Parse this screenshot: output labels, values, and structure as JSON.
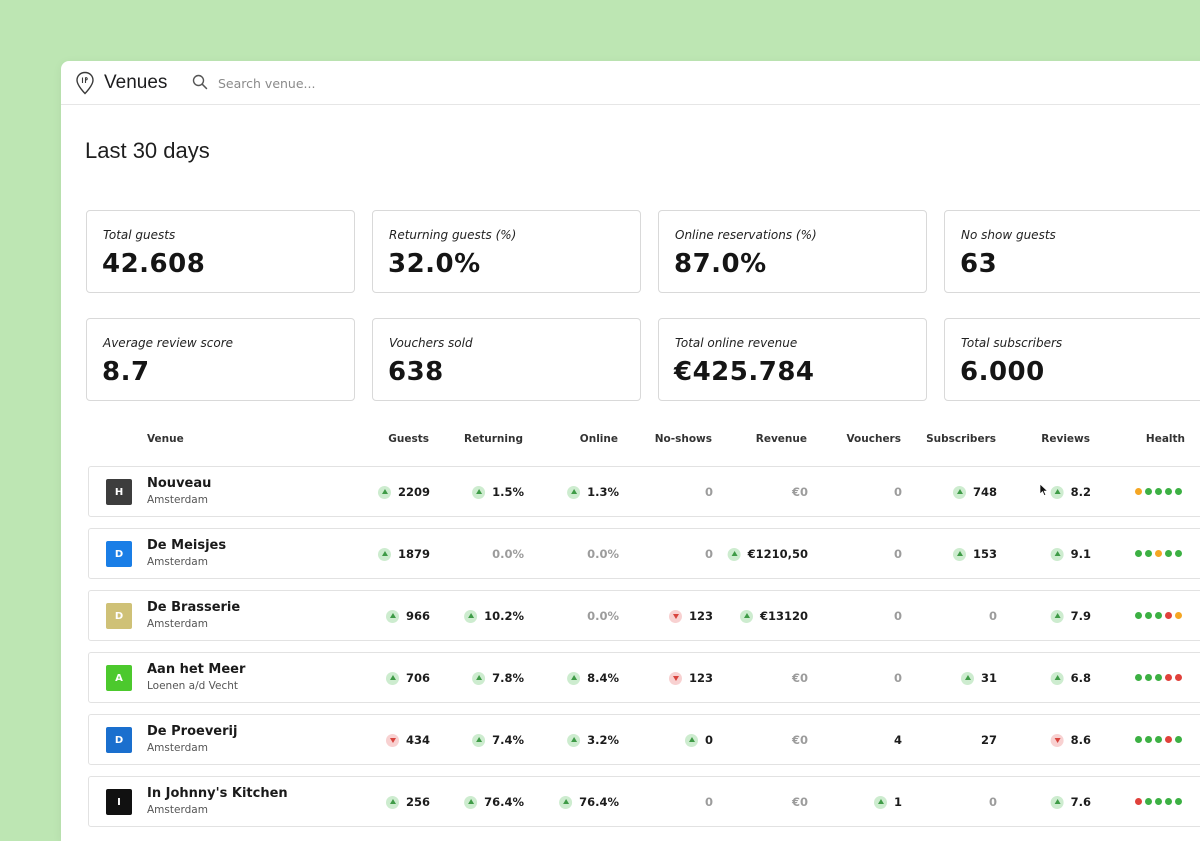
{
  "header": {
    "title": "Venues",
    "search_placeholder": "Search venue...",
    "logo_icon": "location-pin-logo-icon",
    "search_icon": "search-icon"
  },
  "page": {
    "title": "Last 30 days"
  },
  "stats": [
    {
      "label": "Total guests",
      "value": "42.608"
    },
    {
      "label": "Returning guests (%)",
      "value": "32.0%"
    },
    {
      "label": "Online reservations (%)",
      "value": "87.0%"
    },
    {
      "label": "No show guests",
      "value": "63"
    },
    {
      "label": "Average review score",
      "value": "8.7"
    },
    {
      "label": "Vouchers sold",
      "value": "638"
    },
    {
      "label": "Total online revenue",
      "value": "€425.784"
    },
    {
      "label": "Total subscribers",
      "value": "6.000"
    }
  ],
  "table": {
    "columns": [
      "Venue",
      "Guests",
      "Returning",
      "Online",
      "No-shows",
      "Revenue",
      "Vouchers",
      "Subscribers",
      "Reviews",
      "Health"
    ],
    "rows": [
      {
        "initial": "H",
        "avatar_color": "#3d3d3d",
        "name": "Nouveau",
        "city": "Amsterdam",
        "guests": {
          "v": "2209",
          "t": "up"
        },
        "returning": {
          "v": "1.5%",
          "t": "up"
        },
        "online": {
          "v": "1.3%",
          "t": "up"
        },
        "noshows": {
          "v": "0",
          "t": ""
        },
        "revenue": {
          "v": "€0",
          "t": ""
        },
        "vouchers": {
          "v": "0",
          "t": ""
        },
        "subscribers": {
          "v": "748",
          "t": "up"
        },
        "reviews": {
          "v": "8.2",
          "t": "up"
        },
        "health": [
          "#f5a623",
          "#3cb043",
          "#3cb043",
          "#3cb043",
          "#3cb043"
        ]
      },
      {
        "initial": "D",
        "avatar_color": "#1a7ee6",
        "name": "De Meisjes",
        "city": "Amsterdam",
        "guests": {
          "v": "1879",
          "t": "up"
        },
        "returning": {
          "v": "0.0%",
          "t": ""
        },
        "online": {
          "v": "0.0%",
          "t": ""
        },
        "noshows": {
          "v": "0",
          "t": ""
        },
        "revenue": {
          "v": "€1210,50",
          "t": "up"
        },
        "vouchers": {
          "v": "0",
          "t": ""
        },
        "subscribers": {
          "v": "153",
          "t": "up"
        },
        "reviews": {
          "v": "9.1",
          "t": "up"
        },
        "health": [
          "#3cb043",
          "#3cb043",
          "#f5a623",
          "#3cb043",
          "#3cb043"
        ]
      },
      {
        "initial": "D",
        "avatar_color": "#cfc177",
        "name": "De Brasserie",
        "city": "Amsterdam",
        "guests": {
          "v": "966",
          "t": "up"
        },
        "returning": {
          "v": "10.2%",
          "t": "up"
        },
        "online": {
          "v": "0.0%",
          "t": ""
        },
        "noshows": {
          "v": "123",
          "t": "down"
        },
        "revenue": {
          "v": "€13120",
          "t": "up"
        },
        "vouchers": {
          "v": "0",
          "t": ""
        },
        "subscribers": {
          "v": "0",
          "t": ""
        },
        "reviews": {
          "v": "7.9",
          "t": "up"
        },
        "health": [
          "#3cb043",
          "#3cb043",
          "#3cb043",
          "#e0413b",
          "#f5a623"
        ]
      },
      {
        "initial": "A",
        "avatar_color": "#4cc92d",
        "name": "Aan het Meer",
        "city": "Loenen a/d Vecht",
        "guests": {
          "v": "706",
          "t": "up"
        },
        "returning": {
          "v": "7.8%",
          "t": "up"
        },
        "online": {
          "v": "8.4%",
          "t": "up"
        },
        "noshows": {
          "v": "123",
          "t": "down"
        },
        "revenue": {
          "v": "€0",
          "t": ""
        },
        "vouchers": {
          "v": "0",
          "t": ""
        },
        "subscribers": {
          "v": "31",
          "t": "up"
        },
        "reviews": {
          "v": "6.8",
          "t": "up"
        },
        "health": [
          "#3cb043",
          "#3cb043",
          "#3cb043",
          "#e0413b",
          "#e0413b"
        ]
      },
      {
        "initial": "D",
        "avatar_color": "#1a6fce",
        "name": "De Proeverij",
        "city": "Amsterdam",
        "guests": {
          "v": "434",
          "t": "down"
        },
        "returning": {
          "v": "7.4%",
          "t": "up"
        },
        "online": {
          "v": "3.2%",
          "t": "up"
        },
        "noshows": {
          "v": "0",
          "t": "up"
        },
        "revenue": {
          "v": "€0",
          "t": ""
        },
        "vouchers": {
          "v": "4",
          "t": "plain"
        },
        "subscribers": {
          "v": "27",
          "t": "plain"
        },
        "reviews": {
          "v": "8.6",
          "t": "down"
        },
        "health": [
          "#3cb043",
          "#3cb043",
          "#3cb043",
          "#e0413b",
          "#3cb043"
        ]
      },
      {
        "initial": "I",
        "avatar_color": "#111111",
        "name": "In Johnny's Kitchen",
        "city": "Amsterdam",
        "guests": {
          "v": "256",
          "t": "up"
        },
        "returning": {
          "v": "76.4%",
          "t": "up"
        },
        "online": {
          "v": "76.4%",
          "t": "up"
        },
        "noshows": {
          "v": "0",
          "t": ""
        },
        "revenue": {
          "v": "€0",
          "t": ""
        },
        "vouchers": {
          "v": "1",
          "t": "up"
        },
        "subscribers": {
          "v": "0",
          "t": ""
        },
        "reviews": {
          "v": "7.6",
          "t": "up"
        },
        "health": [
          "#e0413b",
          "#3cb043",
          "#3cb043",
          "#3cb043",
          "#3cb043"
        ]
      }
    ]
  }
}
